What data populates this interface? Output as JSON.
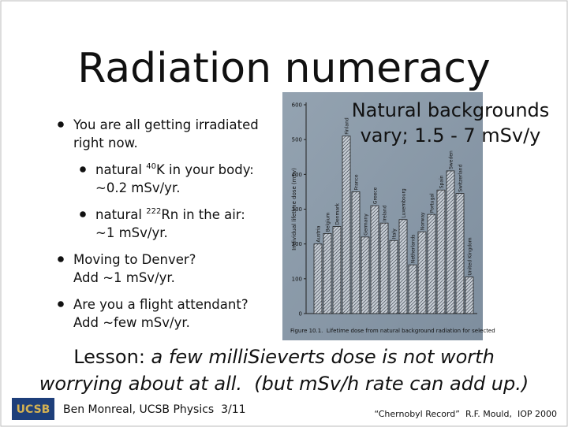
{
  "title": "Radiation numeracy",
  "bullets": [
    {
      "level": 0,
      "lines": [
        "You are all getting irradiated",
        "right now."
      ]
    },
    {
      "level": 1,
      "lines": [
        {
          "pre": "natural ",
          "sup": "40",
          "post": "K in your body:"
        },
        "~0.2 mSv/yr."
      ]
    },
    {
      "level": 1,
      "lines": [
        {
          "pre": "natural ",
          "sup": "222",
          "post": "Rn in the air:"
        },
        "~1 mSv/yr."
      ]
    },
    {
      "level": 0,
      "lines": [
        "Moving to Denver?",
        "Add ~1 mSv/yr."
      ]
    },
    {
      "level": 0,
      "lines": [
        "Are you a flight attendant?",
        "Add ~few mSv/yr."
      ]
    }
  ],
  "figure": {
    "type": "bar",
    "ylabel": "Individual lifetime dose (mSv)",
    "categories": [
      "Austria",
      "Belgium",
      "Denmark",
      "Finland",
      "France",
      "Germany",
      "Greece",
      "Ireland",
      "Italy",
      "Luxembourg",
      "Netherlands",
      "Norway",
      "Portugal",
      "Spain",
      "Sweden",
      "Switzerland",
      "United Kingdom"
    ],
    "values": [
      200,
      230,
      250,
      510,
      350,
      220,
      310,
      260,
      210,
      270,
      140,
      235,
      285,
      355,
      410,
      345,
      105
    ],
    "ylim": [
      0,
      600
    ],
    "yticks": [
      0,
      100,
      200,
      300,
      400,
      500,
      600
    ],
    "caption": "Figure 10.1.  Lifetime dose from natural background radiation for selected"
  },
  "callout": [
    "Natural backgrounds",
    "vary; 1.5 - 7 mSv/y"
  ],
  "lesson": {
    "label": "Lesson:",
    "line1": " a few milliSieverts dose is not worth",
    "line2": "worrying about at all.  (but mSv/h rate can add up.)"
  },
  "footer": {
    "logo": "UCSB",
    "author": "Ben Monreal, UCSB Physics  3/11",
    "source": "“Chernobyl Record”  R.F. Mould,  IOP 2000"
  }
}
